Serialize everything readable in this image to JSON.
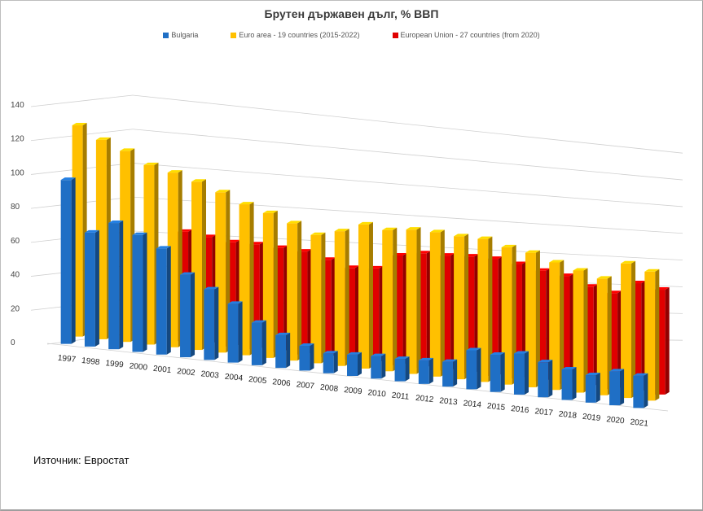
{
  "chart_data": {
    "type": "bar",
    "style": "3d-clustered-depth",
    "title": "Брутен държавен дълг, % ВВП",
    "xlabel": "",
    "ylabel": "",
    "ylim": [
      0,
      140
    ],
    "yticks": [
      0,
      20,
      40,
      60,
      80,
      100,
      120,
      140
    ],
    "grid": true,
    "legend_position": "top",
    "categories": [
      "1997",
      "1998",
      "1999",
      "2000",
      "2001",
      "2002",
      "2003",
      "2004",
      "2005",
      "2006",
      "2007",
      "2008",
      "2009",
      "2010",
      "2011",
      "2012",
      "2013",
      "2014",
      "2015",
      "2016",
      "2017",
      "2018",
      "2019",
      "2020",
      "2021"
    ],
    "series": [
      {
        "name": "Bulgaria",
        "color": "#1f6fc5",
        "values": [
          97,
          68,
          76,
          71,
          65,
          51,
          44,
          37,
          27,
          21,
          16,
          13,
          14,
          15,
          15,
          16,
          17,
          27,
          26,
          29,
          25,
          22,
          20,
          25,
          24
        ]
      },
      {
        "name": "Euro area - 19 countries  (2015-2022)",
        "color": "#ffc000",
        "values": [
          125,
          119,
          115,
          109,
          107,
          104,
          100,
          95,
          92,
          88,
          83,
          88,
          95,
          94,
          97,
          98,
          98,
          99,
          96,
          95,
          91,
          88,
          85,
          99,
          96
        ]
      },
      {
        "name": "European Union - 27 countries (from 2020)",
        "color": "#e00000",
        "values": [
          null,
          null,
          null,
          null,
          67,
          66,
          65,
          66,
          66,
          66,
          63,
          60,
          62,
          73,
          77,
          78,
          80,
          81,
          80,
          78,
          77,
          72,
          70,
          80,
          78
        ]
      }
    ]
  },
  "footer": {
    "source": "Източник: Евростат"
  }
}
